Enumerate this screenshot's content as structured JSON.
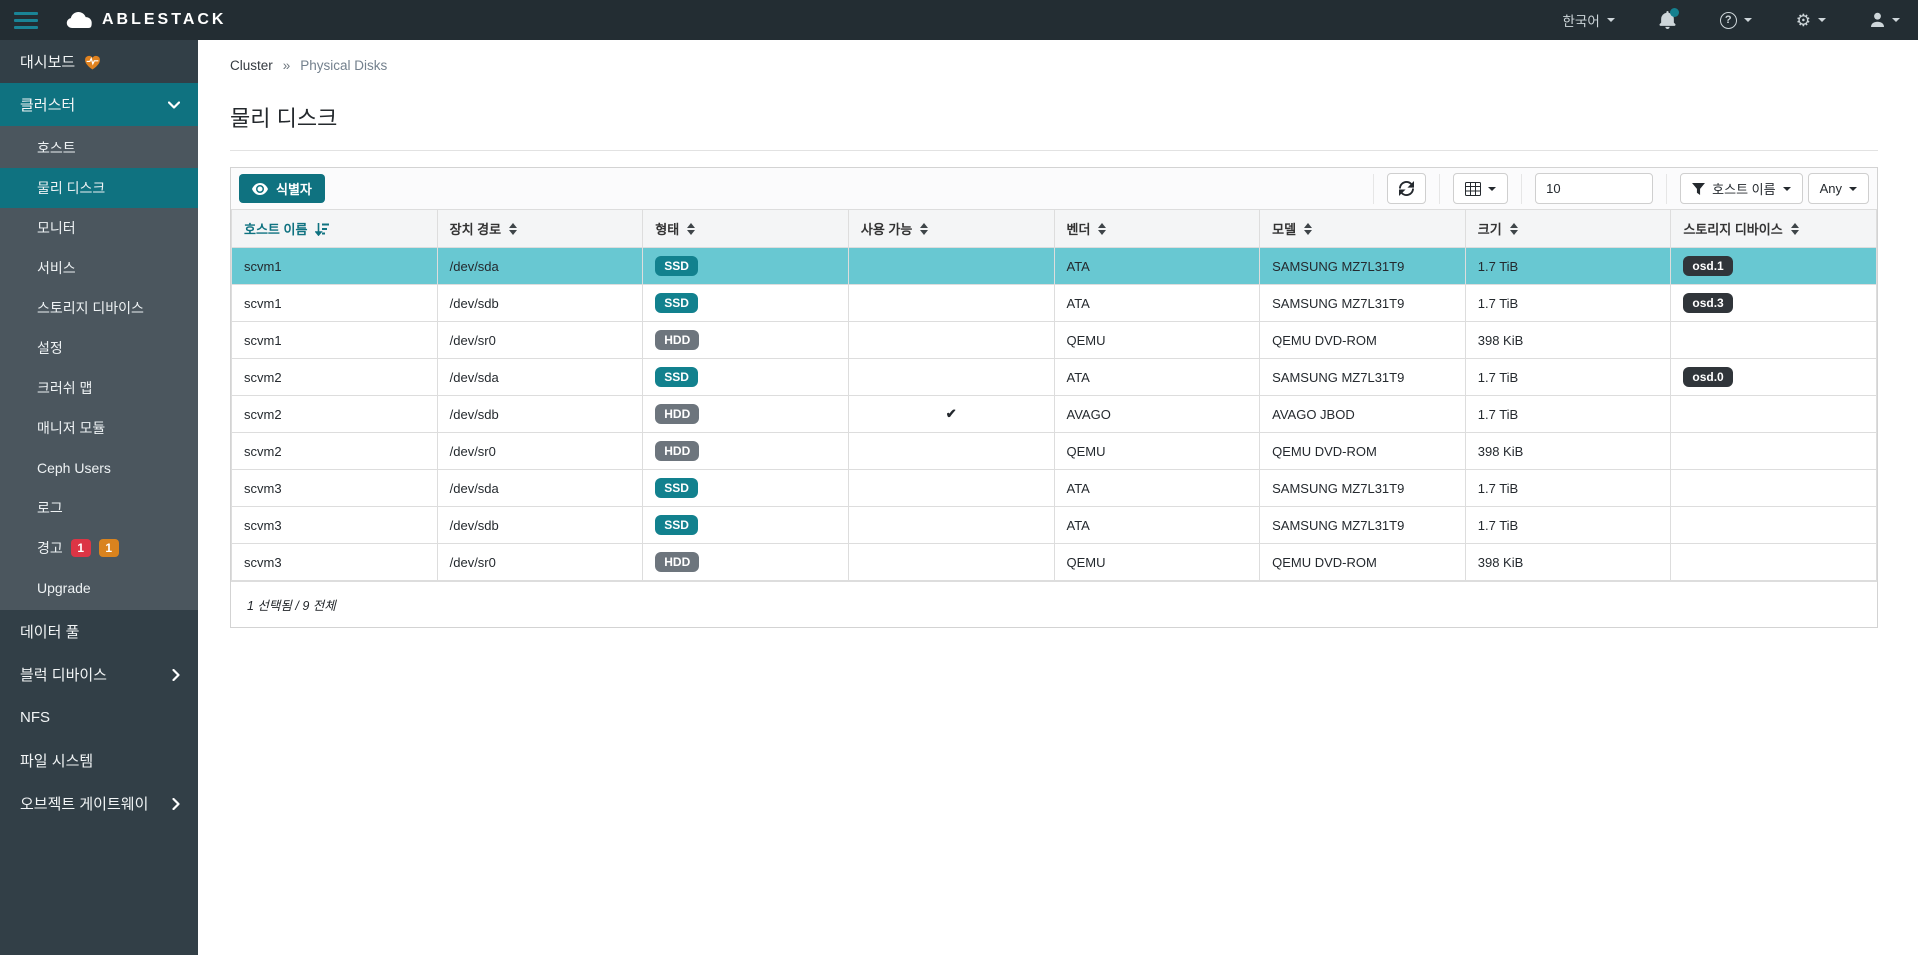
{
  "navbar": {
    "brand": "ABLESTACK",
    "language": "한국어"
  },
  "breadcrumb": {
    "parent": "Cluster",
    "separator": "»",
    "current": "Physical Disks"
  },
  "page": {
    "title": "물리 디스크"
  },
  "toolbar": {
    "identify_label": "식별자",
    "page_size": "10",
    "filter_column": "호스트 이름",
    "filter_value": "Any"
  },
  "table": {
    "columns": [
      {
        "id": "host-name",
        "label": "호스트 이름",
        "sorted": true
      },
      {
        "id": "device-path",
        "label": "장치 경로"
      },
      {
        "id": "type",
        "label": "형태"
      },
      {
        "id": "available",
        "label": "사용 가능"
      },
      {
        "id": "vendor",
        "label": "벤더"
      },
      {
        "id": "model",
        "label": "모델"
      },
      {
        "id": "size",
        "label": "크기"
      },
      {
        "id": "storage-devices",
        "label": "스토리지 디바이스"
      }
    ],
    "rows": [
      {
        "host": "scvm1",
        "path": "/dev/sda",
        "type": "SSD",
        "available": "",
        "vendor": "ATA",
        "model": "SAMSUNG MZ7L31T9",
        "size": "1.7 TiB",
        "osd": "osd.1",
        "selected": true
      },
      {
        "host": "scvm1",
        "path": "/dev/sdb",
        "type": "SSD",
        "available": "",
        "vendor": "ATA",
        "model": "SAMSUNG MZ7L31T9",
        "size": "1.7 TiB",
        "osd": "osd.3",
        "selected": false
      },
      {
        "host": "scvm1",
        "path": "/dev/sr0",
        "type": "HDD",
        "available": "",
        "vendor": "QEMU",
        "model": "QEMU DVD-ROM",
        "size": "398 KiB",
        "osd": "",
        "selected": false
      },
      {
        "host": "scvm2",
        "path": "/dev/sda",
        "type": "SSD",
        "available": "",
        "vendor": "ATA",
        "model": "SAMSUNG MZ7L31T9",
        "size": "1.7 TiB",
        "osd": "osd.0",
        "selected": false
      },
      {
        "host": "scvm2",
        "path": "/dev/sdb",
        "type": "HDD",
        "available": "✔",
        "vendor": "AVAGO",
        "model": "AVAGO JBOD",
        "size": "1.7 TiB",
        "osd": "",
        "selected": false
      },
      {
        "host": "scvm2",
        "path": "/dev/sr0",
        "type": "HDD",
        "available": "",
        "vendor": "QEMU",
        "model": "QEMU DVD-ROM",
        "size": "398 KiB",
        "osd": "",
        "selected": false
      },
      {
        "host": "scvm3",
        "path": "/dev/sda",
        "type": "SSD",
        "available": "",
        "vendor": "ATA",
        "model": "SAMSUNG MZ7L31T9",
        "size": "1.7 TiB",
        "osd": "",
        "selected": false
      },
      {
        "host": "scvm3",
        "path": "/dev/sdb",
        "type": "SSD",
        "available": "",
        "vendor": "ATA",
        "model": "SAMSUNG MZ7L31T9",
        "size": "1.7 TiB",
        "osd": "",
        "selected": false
      },
      {
        "host": "scvm3",
        "path": "/dev/sr0",
        "type": "HDD",
        "available": "",
        "vendor": "QEMU",
        "model": "QEMU DVD-ROM",
        "size": "398 KiB",
        "osd": "",
        "selected": false
      }
    ],
    "footer": "1 선택됨 / 9 전체"
  },
  "sidebar": {
    "items": [
      {
        "id": "dashboard",
        "label": "대시보드",
        "icon": "heartbeat-icon"
      },
      {
        "id": "cluster",
        "label": "클러스터",
        "chevron": "down",
        "active_section": true,
        "children": [
          {
            "id": "hosts",
            "label": "호스트"
          },
          {
            "id": "physical-disks",
            "label": "물리 디스크",
            "active": true
          },
          {
            "id": "monitors",
            "label": "모니터"
          },
          {
            "id": "services",
            "label": "서비스"
          },
          {
            "id": "storage-devices",
            "label": "스토리지 디바이스"
          },
          {
            "id": "configuration",
            "label": "설정"
          },
          {
            "id": "crush-map",
            "label": "크러쉬 맵"
          },
          {
            "id": "manager-modules",
            "label": "매니저 모듈"
          },
          {
            "id": "ceph-users",
            "label": "Ceph Users"
          },
          {
            "id": "logs",
            "label": "로그"
          },
          {
            "id": "alerts",
            "label": "경고",
            "badges": [
              {
                "text": "1",
                "color": "red"
              },
              {
                "text": "1",
                "color": "orange"
              }
            ]
          },
          {
            "id": "upgrade",
            "label": "Upgrade"
          }
        ]
      },
      {
        "id": "pools",
        "label": "데이터 풀"
      },
      {
        "id": "block-devices",
        "label": "블럭 디바이스",
        "chevron": "right"
      },
      {
        "id": "nfs",
        "label": "NFS"
      },
      {
        "id": "filesystems",
        "label": "파일 시스템"
      },
      {
        "id": "object-gateway",
        "label": "오브젝트 게이트웨이",
        "chevron": "right"
      }
    ]
  },
  "colors": {
    "accent_teal": "#0f7280",
    "selected_row": "#68c8d2",
    "badge_ssd": "#12818e",
    "badge_hdd": "#6d757d",
    "badge_osd": "#30353a",
    "alert_red": "#dc3545",
    "alert_orange": "#d9831e",
    "heartbeat_orange": "#e0821f"
  }
}
